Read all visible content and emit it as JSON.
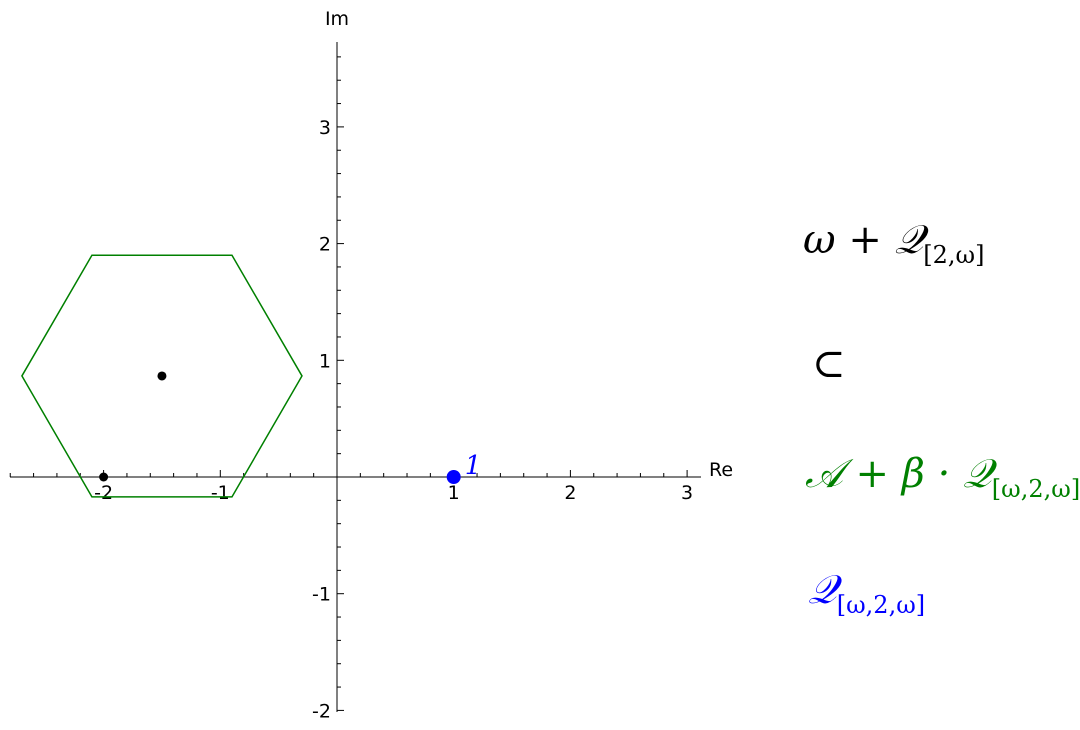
{
  "axes": {
    "x_label": "Re",
    "y_label": "Im",
    "x_ticks": [
      -2,
      -1,
      1,
      2,
      3
    ],
    "x_tick_labels": [
      "-2",
      "-1",
      "1",
      "2",
      "3"
    ],
    "y_ticks": [
      -2,
      -1,
      1,
      2,
      3
    ],
    "y_tick_labels": [
      "-2",
      "-1",
      "1",
      "2",
      "3"
    ],
    "xlim": [
      -2.8,
      3.1
    ],
    "ylim": [
      -2.05,
      3.75
    ]
  },
  "hexagon": {
    "color": "#008000",
    "vertices": [
      [
        -2.1,
        1.9
      ],
      [
        -0.9,
        1.9
      ],
      [
        -0.3,
        0.866
      ],
      [
        -0.9,
        -0.17
      ],
      [
        -2.1,
        -0.17
      ],
      [
        -2.7,
        0.866
      ]
    ]
  },
  "points": [
    {
      "x": -1.5,
      "y": 0.866,
      "color": "#000000",
      "label": ""
    },
    {
      "x": -2,
      "y": 0,
      "color": "#000000",
      "label": ""
    },
    {
      "x": 1,
      "y": 0,
      "color": "#0000ff",
      "label": "1"
    }
  ],
  "formulas": {
    "f1": {
      "main": "ω + 𝒬",
      "sub": "[2,ω]",
      "color": "#000000"
    },
    "f2": {
      "main": "⊂",
      "color": "#000000"
    },
    "f3": {
      "main": "𝒜 + β · 𝒬",
      "sub": "[ω,2,ω]",
      "color": "#008000"
    },
    "f4": {
      "main": "𝒬",
      "sub": "[ω,2,ω]",
      "color": "#0000ff"
    }
  }
}
